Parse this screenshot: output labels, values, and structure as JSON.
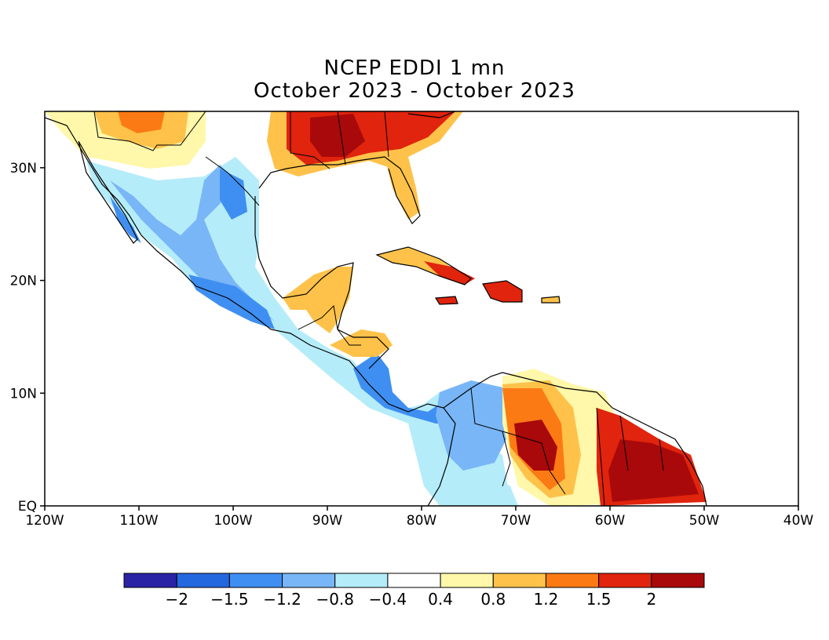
{
  "title": {
    "line1": "NCEP EDDI 1 mn",
    "line2": "October 2023 - October 2023"
  },
  "map": {
    "lon_range": [
      -120,
      -40
    ],
    "lat_range": [
      0,
      35
    ],
    "x_ticks": [
      "120W",
      "110W",
      "100W",
      "90W",
      "80W",
      "70W",
      "60W",
      "50W",
      "40W"
    ],
    "y_ticks": [
      "EQ",
      "10N",
      "20N",
      "30N"
    ]
  },
  "colorbar": {
    "colors": [
      "#2b23a6",
      "#2468e0",
      "#3f8ff2",
      "#79b6f7",
      "#b5ecf9",
      "#ffffff",
      "#fff7a9",
      "#fec24a",
      "#fb7a14",
      "#e0240d",
      "#a9090a"
    ],
    "labels": [
      "-2",
      "-1.5",
      "-1.2",
      "-0.8",
      "-0.4",
      "0.4",
      "0.8",
      "1.2",
      "1.5",
      "2"
    ]
  }
}
